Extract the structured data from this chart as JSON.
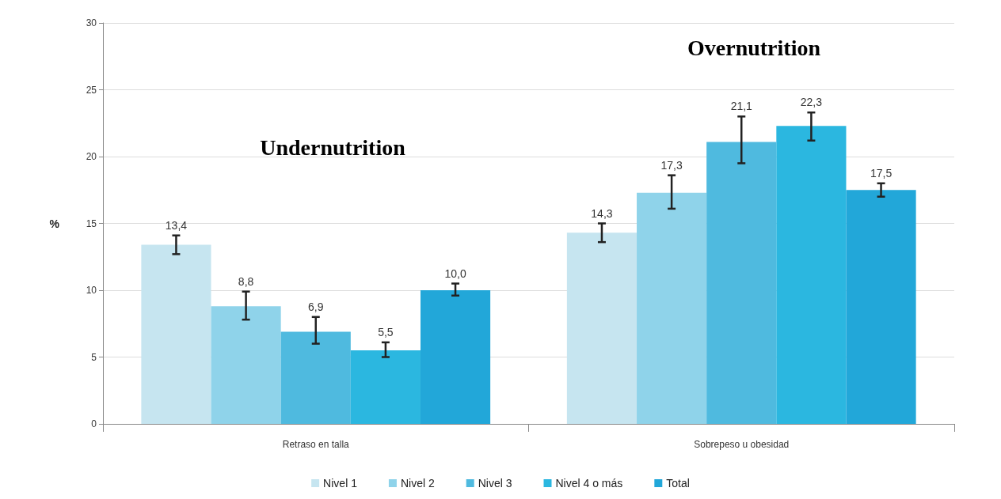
{
  "chart_data": {
    "type": "bar",
    "ylabel": "%",
    "categories": [
      "Retraso en talla",
      "Sobrepeso u obesidad"
    ],
    "series": [
      {
        "name": "Nivel 1",
        "color": "#c6e5f0",
        "values": [
          13.4,
          14.3
        ],
        "errors": [
          [
            12.7,
            14.1
          ],
          [
            13.6,
            15.0
          ]
        ],
        "value_labels": [
          "13,4",
          "14,3"
        ]
      },
      {
        "name": "Nivel 2",
        "color": "#8fd3ea",
        "values": [
          8.8,
          17.3
        ],
        "errors": [
          [
            7.8,
            9.9
          ],
          [
            16.1,
            18.6
          ]
        ],
        "value_labels": [
          "8,8",
          "17,3"
        ]
      },
      {
        "name": "Nivel 3",
        "color": "#4fbadf",
        "values": [
          6.9,
          21.1
        ],
        "errors": [
          [
            6.0,
            8.0
          ],
          [
            19.5,
            23.0
          ]
        ],
        "value_labels": [
          "6,9",
          "21,1"
        ]
      },
      {
        "name": "Nivel 4 o más",
        "color": "#2bb7e0",
        "values": [
          5.5,
          22.3
        ],
        "errors": [
          [
            5.0,
            6.1
          ],
          [
            21.2,
            23.3
          ]
        ],
        "value_labels": [
          "5,5",
          "22,3"
        ]
      },
      {
        "name": "Total",
        "color": "#22a7d9",
        "values": [
          10.0,
          17.5
        ],
        "errors": [
          [
            9.6,
            10.5
          ],
          [
            17.0,
            18.0
          ]
        ],
        "value_labels": [
          "10,0",
          "17,5"
        ]
      }
    ],
    "annotations": [
      "Undernutrition",
      "Overnutrition"
    ],
    "ylim": [
      0,
      30
    ],
    "yticks": [
      0,
      5,
      10,
      15,
      20,
      25,
      30
    ],
    "grid": "y",
    "legend": "bottom"
  }
}
